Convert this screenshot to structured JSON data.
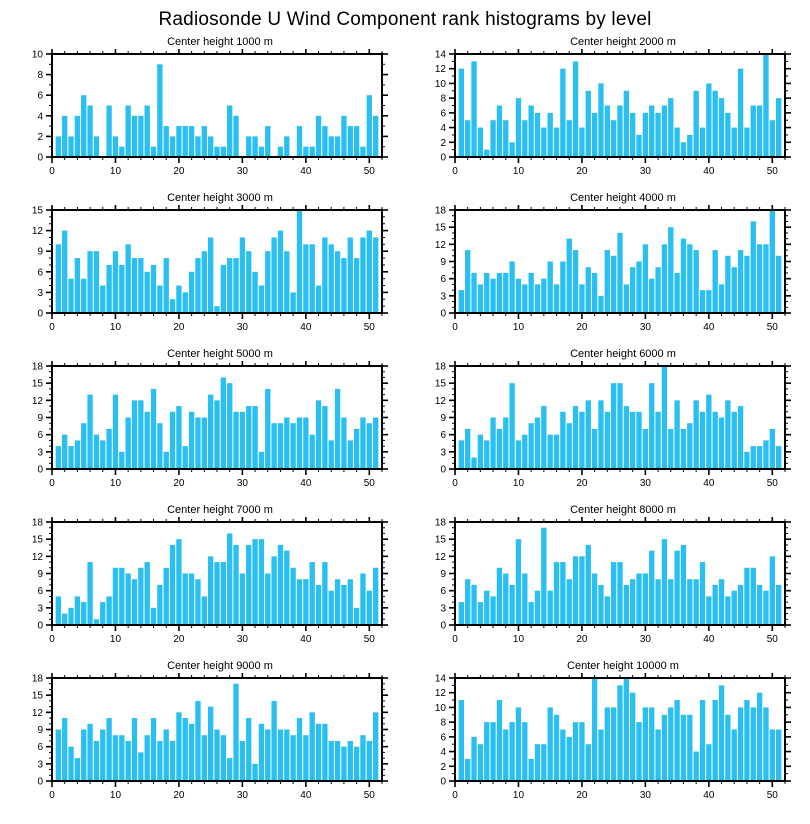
{
  "page": {
    "title": "Radiosonde U Wind Component rank histograms by level"
  },
  "colors": {
    "bar": "#29BFF0",
    "axis": "#000000",
    "background": "#FFFFFF"
  },
  "chart_data": [
    {
      "type": "bar",
      "title": "Center height 1000 m",
      "xlim": [
        0,
        52
      ],
      "xticks": [
        0,
        10,
        20,
        30,
        40,
        50
      ],
      "xtick_minor_step": 2,
      "ylim": [
        0,
        10
      ],
      "yticks": [
        0,
        2,
        4,
        6,
        8,
        10
      ],
      "ytick_minor_step": 1,
      "x_start": 1,
      "values": [
        2,
        4,
        2,
        4,
        6,
        5,
        2,
        0,
        5,
        2,
        1,
        5,
        4,
        4,
        5,
        1,
        9,
        3,
        2,
        3,
        3,
        3,
        2,
        3,
        2,
        1,
        1,
        5,
        4,
        0,
        2,
        2,
        1,
        3,
        0,
        1,
        2,
        0,
        3,
        1,
        1,
        4,
        3,
        2,
        2,
        4,
        3,
        3,
        1,
        6,
        4
      ]
    },
    {
      "type": "bar",
      "title": "Center height 2000 m",
      "xlim": [
        0,
        52
      ],
      "xticks": [
        0,
        10,
        20,
        30,
        40,
        50
      ],
      "xtick_minor_step": 2,
      "ylim": [
        0,
        14
      ],
      "yticks": [
        0,
        2,
        4,
        6,
        8,
        10,
        12,
        14
      ],
      "ytick_minor_step": 1,
      "x_start": 1,
      "values": [
        12,
        5,
        13,
        4,
        1,
        5,
        7,
        5,
        2,
        8,
        5,
        7,
        6,
        4,
        6,
        4,
        12,
        5,
        13,
        4,
        9,
        6,
        10,
        7,
        5,
        7,
        9,
        6,
        3,
        6,
        7,
        6,
        7,
        8,
        4,
        2,
        3,
        9,
        4,
        10,
        9,
        8,
        6,
        4,
        12,
        4,
        7,
        7,
        14,
        5,
        8
      ]
    },
    {
      "type": "bar",
      "title": "Center height 3000 m",
      "xlim": [
        0,
        52
      ],
      "xticks": [
        0,
        10,
        20,
        30,
        40,
        50
      ],
      "xtick_minor_step": 2,
      "ylim": [
        0,
        15
      ],
      "yticks": [
        0,
        3,
        6,
        9,
        12,
        15
      ],
      "ytick_minor_step": 1,
      "x_start": 1,
      "values": [
        10,
        12,
        5,
        8,
        5,
        9,
        9,
        4,
        7,
        9,
        7,
        10,
        8,
        8,
        6,
        7,
        4,
        8,
        2,
        4,
        3,
        6,
        8,
        9,
        11,
        1,
        7,
        8,
        8,
        11,
        9,
        6,
        4,
        9,
        11,
        12,
        9,
        3,
        15,
        10,
        10,
        4,
        11,
        10,
        9,
        8,
        11,
        8,
        11,
        12,
        11
      ]
    },
    {
      "type": "bar",
      "title": "Center height 4000 m",
      "xlim": [
        0,
        52
      ],
      "xticks": [
        0,
        10,
        20,
        30,
        40,
        50
      ],
      "xtick_minor_step": 2,
      "ylim": [
        0,
        18
      ],
      "yticks": [
        0,
        3,
        6,
        9,
        12,
        15,
        18
      ],
      "ytick_minor_step": 1,
      "x_start": 1,
      "values": [
        4,
        11,
        7,
        5,
        7,
        6,
        7,
        7,
        9,
        6,
        5,
        7,
        5,
        6,
        9,
        5,
        9,
        13,
        11,
        5,
        8,
        7,
        3,
        11,
        10,
        14,
        5,
        8,
        9,
        12,
        6,
        8,
        12,
        15,
        7,
        13,
        12,
        11,
        4,
        4,
        11,
        5,
        10,
        8,
        11,
        10,
        16,
        12,
        12,
        18,
        10
      ]
    },
    {
      "type": "bar",
      "title": "Center height 5000 m",
      "xlim": [
        0,
        52
      ],
      "xticks": [
        0,
        10,
        20,
        30,
        40,
        50
      ],
      "xtick_minor_step": 2,
      "ylim": [
        0,
        18
      ],
      "yticks": [
        0,
        3,
        6,
        9,
        12,
        15,
        18
      ],
      "ytick_minor_step": 1,
      "x_start": 1,
      "values": [
        4,
        6,
        4,
        5,
        8,
        13,
        6,
        5,
        7,
        13,
        3,
        9,
        12,
        12,
        10,
        14,
        8,
        3,
        10,
        11,
        4,
        10,
        9,
        9,
        13,
        12,
        16,
        15,
        10,
        10,
        11,
        11,
        3,
        14,
        8,
        8,
        9,
        8,
        9,
        9,
        6,
        12,
        11,
        5,
        14,
        9,
        5,
        7,
        9,
        8,
        9
      ]
    },
    {
      "type": "bar",
      "title": "Center height 6000 m",
      "xlim": [
        0,
        52
      ],
      "xticks": [
        0,
        10,
        20,
        30,
        40,
        50
      ],
      "xtick_minor_step": 2,
      "ylim": [
        0,
        18
      ],
      "yticks": [
        0,
        3,
        6,
        9,
        12,
        15,
        18
      ],
      "ytick_minor_step": 1,
      "x_start": 1,
      "values": [
        5,
        7,
        2,
        6,
        5,
        9,
        7,
        9,
        15,
        5,
        6,
        8,
        9,
        11,
        6,
        6,
        10,
        8,
        11,
        10,
        12,
        7,
        12,
        10,
        15,
        15,
        11,
        10,
        10,
        7,
        15,
        10,
        18,
        7,
        12,
        7,
        8,
        12,
        10,
        13,
        10,
        9,
        12,
        10,
        11,
        3,
        4,
        4,
        5,
        7,
        4
      ]
    },
    {
      "type": "bar",
      "title": "Center height 7000 m",
      "xlim": [
        0,
        52
      ],
      "xticks": [
        0,
        10,
        20,
        30,
        40,
        50
      ],
      "xtick_minor_step": 2,
      "ylim": [
        0,
        18
      ],
      "yticks": [
        0,
        3,
        6,
        9,
        12,
        15,
        18
      ],
      "ytick_minor_step": 1,
      "x_start": 1,
      "values": [
        5,
        2,
        3,
        5,
        4,
        11,
        1,
        4,
        5,
        10,
        10,
        9,
        8,
        10,
        11,
        3,
        7,
        10,
        14,
        15,
        9,
        9,
        8,
        5,
        12,
        11,
        11,
        16,
        14,
        9,
        14,
        15,
        15,
        9,
        12,
        14,
        13,
        10,
        8,
        8,
        11,
        7,
        11,
        6,
        8,
        7,
        8,
        3,
        9,
        6,
        10
      ]
    },
    {
      "type": "bar",
      "title": "Center height 8000 m",
      "xlim": [
        0,
        52
      ],
      "xticks": [
        0,
        10,
        20,
        30,
        40,
        50
      ],
      "xtick_minor_step": 2,
      "ylim": [
        0,
        18
      ],
      "yticks": [
        0,
        3,
        6,
        9,
        12,
        15,
        18
      ],
      "ytick_minor_step": 1,
      "x_start": 1,
      "values": [
        4,
        8,
        7,
        4,
        6,
        5,
        10,
        9,
        7,
        15,
        9,
        4,
        6,
        17,
        6,
        11,
        11,
        8,
        12,
        12,
        14,
        9,
        7,
        5,
        11,
        11,
        7,
        8,
        9,
        9,
        13,
        8,
        15,
        8,
        13,
        14,
        8,
        8,
        11,
        5,
        7,
        8,
        5,
        6,
        7,
        10,
        10,
        7,
        6,
        12,
        7
      ]
    },
    {
      "type": "bar",
      "title": "Center height 9000 m",
      "xlim": [
        0,
        52
      ],
      "xticks": [
        0,
        10,
        20,
        30,
        40,
        50
      ],
      "xtick_minor_step": 2,
      "ylim": [
        0,
        18
      ],
      "yticks": [
        0,
        3,
        6,
        9,
        12,
        15,
        18
      ],
      "ytick_minor_step": 1,
      "x_start": 1,
      "values": [
        9,
        11,
        6,
        4,
        9,
        10,
        7,
        9,
        11,
        8,
        8,
        7,
        11,
        5,
        8,
        11,
        7,
        9,
        7,
        12,
        11,
        10,
        14,
        8,
        13,
        9,
        8,
        4,
        17,
        7,
        11,
        3,
        10,
        9,
        14,
        9,
        9,
        8,
        11,
        8,
        12,
        10,
        10,
        7,
        7,
        6,
        7,
        6,
        8,
        7,
        12
      ]
    },
    {
      "type": "bar",
      "title": "Center height 10000 m",
      "xlim": [
        0,
        52
      ],
      "xticks": [
        0,
        10,
        20,
        30,
        40,
        50
      ],
      "xtick_minor_step": 2,
      "ylim": [
        0,
        14
      ],
      "yticks": [
        0,
        2,
        4,
        6,
        8,
        10,
        12,
        14
      ],
      "ytick_minor_step": 1,
      "x_start": 1,
      "values": [
        11,
        3,
        6,
        5,
        8,
        8,
        11,
        7,
        8,
        10,
        8,
        3,
        5,
        5,
        10,
        9,
        7,
        6,
        8,
        8,
        5,
        14,
        7,
        10,
        10,
        13,
        14,
        12,
        8,
        10,
        10,
        7,
        9,
        10,
        11,
        9,
        9,
        4,
        11,
        5,
        11,
        13,
        9,
        7,
        10,
        11,
        10,
        12,
        10,
        7,
        7
      ]
    }
  ]
}
